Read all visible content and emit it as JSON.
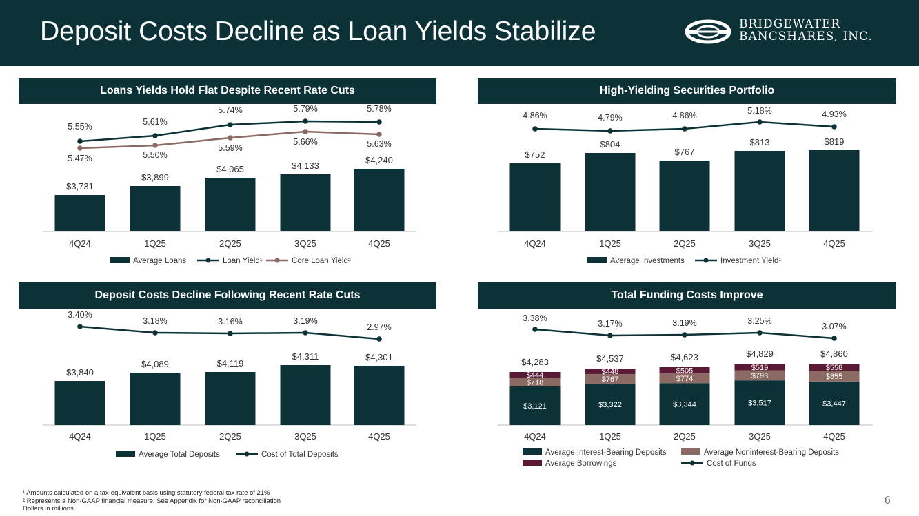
{
  "slide": {
    "title": "Deposit Costs Decline as Loan Yields Stabilize",
    "page_number": "6",
    "logo": {
      "line1": "BRIDGEWATER",
      "line2": "BANCSHARES, INC."
    }
  },
  "colors": {
    "primary": "#0c3237",
    "secondary": "#8a6a62",
    "tertiary": "#5a1a34"
  },
  "footnotes": [
    "¹ Amounts calculated on a tax-equivalent basis using statutory federal tax rate of 21%",
    "² Represents a Non-GAAP financial measure. See Appendix for Non-GAAP reconciliation",
    "Dollars in millions"
  ],
  "chart_data": [
    {
      "title": "Loans Yields Hold Flat Despite Recent Rate Cuts",
      "type": "bar+line",
      "categories": [
        "4Q24",
        "1Q25",
        "2Q25",
        "3Q25",
        "4Q25"
      ],
      "bar_series": [
        {
          "name": "Average Loans",
          "values": [
            3731,
            3899,
            4065,
            4133,
            4240
          ],
          "labels": [
            "$3,731",
            "$3,899",
            "$4,065",
            "$4,133",
            "$4,240"
          ]
        }
      ],
      "line_series": [
        {
          "name": "Loan Yield¹",
          "values": [
            5.55,
            5.61,
            5.74,
            5.79,
            5.78
          ],
          "labels": [
            "5.55%",
            "5.61%",
            "5.74%",
            "5.79%",
            "5.78%"
          ]
        },
        {
          "name": "Core Loan Yield²",
          "values": [
            5.47,
            5.5,
            5.59,
            5.66,
            5.63
          ],
          "labels": [
            "5.47%",
            "5.50%",
            "5.59%",
            "5.66%",
            "5.63%"
          ]
        }
      ],
      "legend": [
        "Average Loans",
        "Loan Yield¹",
        "Core Loan Yield²"
      ]
    },
    {
      "title": "High-Yielding Securities Portfolio",
      "type": "bar+line",
      "categories": [
        "4Q24",
        "1Q25",
        "2Q25",
        "3Q25",
        "4Q25"
      ],
      "bar_series": [
        {
          "name": "Average Investments",
          "values": [
            752,
            804,
            767,
            813,
            819
          ],
          "labels": [
            "$752",
            "$804",
            "$767",
            "$813",
            "$819"
          ]
        }
      ],
      "line_series": [
        {
          "name": "Investment Yield¹",
          "values": [
            4.86,
            4.79,
            4.86,
            5.18,
            4.93
          ],
          "labels": [
            "4.86%",
            "4.79%",
            "4.86%",
            "5.18%",
            "4.93%"
          ]
        }
      ],
      "legend": [
        "Average Investments",
        "Investment Yield¹"
      ]
    },
    {
      "title": "Deposit Costs Decline Following Recent Rate Cuts",
      "type": "bar+line",
      "categories": [
        "4Q24",
        "1Q25",
        "2Q25",
        "3Q25",
        "4Q25"
      ],
      "bar_series": [
        {
          "name": "Average Total Deposits",
          "values": [
            3840,
            4089,
            4119,
            4311,
            4301
          ],
          "labels": [
            "$3,840",
            "$4,089",
            "$4,119",
            "$4,311",
            "$4,301"
          ]
        }
      ],
      "line_series": [
        {
          "name": "Cost of Total Deposits",
          "values": [
            3.4,
            3.18,
            3.16,
            3.19,
            2.97
          ],
          "labels": [
            "3.40%",
            "3.18%",
            "3.16%",
            "3.19%",
            "2.97%"
          ]
        }
      ],
      "legend": [
        "Average Total Deposits",
        "Cost of Total Deposits"
      ]
    },
    {
      "title": "Total Funding Costs Improve",
      "type": "stacked-bar+line",
      "categories": [
        "4Q24",
        "1Q25",
        "2Q25",
        "3Q25",
        "4Q25"
      ],
      "stack_series": [
        {
          "name": "Average Interest-Bearing Deposits",
          "values": [
            3121,
            3322,
            3344,
            3517,
            3447
          ],
          "labels": [
            "$3,121",
            "$3,322",
            "$3,344",
            "$3,517",
            "$3,447"
          ]
        },
        {
          "name": "Average Noninterest-Bearing Deposits",
          "values": [
            718,
            767,
            774,
            793,
            855
          ],
          "labels": [
            "$718",
            "$767",
            "$774",
            "$793",
            "$855"
          ]
        },
        {
          "name": "Average Borrowings",
          "values": [
            444,
            448,
            505,
            519,
            558
          ],
          "labels": [
            "$444",
            "$448",
            "$505",
            "$519",
            "$558"
          ]
        }
      ],
      "totals": [
        "$4,283",
        "$4,537",
        "$4,623",
        "$4,829",
        "$4,860"
      ],
      "line_series": [
        {
          "name": "Cost of Funds",
          "values": [
            3.38,
            3.17,
            3.19,
            3.25,
            3.07
          ],
          "labels": [
            "3.38%",
            "3.17%",
            "3.19%",
            "3.25%",
            "3.07%"
          ]
        }
      ],
      "legend": [
        "Average Interest-Bearing Deposits",
        "Average Noninterest-Bearing Deposits",
        "Average Borrowings",
        "Cost of Funds"
      ]
    }
  ]
}
